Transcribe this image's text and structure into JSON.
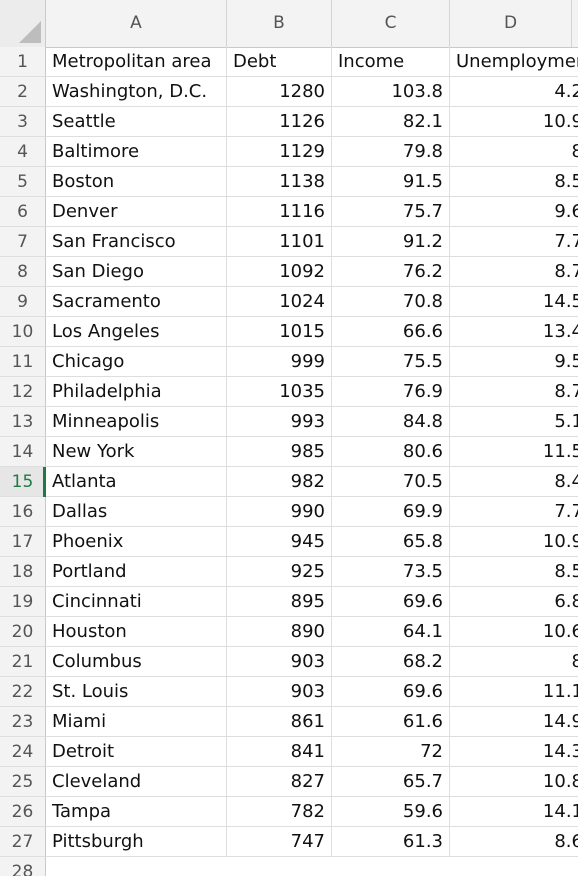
{
  "columns": [
    "A",
    "B",
    "C",
    "D"
  ],
  "active_row": 15,
  "header": {
    "row_number": 1,
    "cells": [
      "Metropolitan area",
      "Debt",
      "Income",
      "Unemployment"
    ]
  },
  "rows": [
    {
      "n": 2,
      "area": "Washington, D.C.",
      "debt": "1280",
      "income": "103.8",
      "unemp": "4.2"
    },
    {
      "n": 3,
      "area": "Seattle",
      "debt": "1126",
      "income": "82.1",
      "unemp": "10.9"
    },
    {
      "n": 4,
      "area": "Baltimore",
      "debt": "1129",
      "income": "79.8",
      "unemp": "8"
    },
    {
      "n": 5,
      "area": "Boston",
      "debt": "1138",
      "income": "91.5",
      "unemp": "8.5"
    },
    {
      "n": 6,
      "area": "Denver",
      "debt": "1116",
      "income": "75.7",
      "unemp": "9.6"
    },
    {
      "n": 7,
      "area": "San Francisco",
      "debt": "1101",
      "income": "91.2",
      "unemp": "7.7"
    },
    {
      "n": 8,
      "area": "San Diego",
      "debt": "1092",
      "income": "76.2",
      "unemp": "8.7"
    },
    {
      "n": 9,
      "area": "Sacramento",
      "debt": "1024",
      "income": "70.8",
      "unemp": "14.5"
    },
    {
      "n": 10,
      "area": "Los Angeles",
      "debt": "1015",
      "income": "66.6",
      "unemp": "13.4"
    },
    {
      "n": 11,
      "area": "Chicago",
      "debt": "999",
      "income": "75.5",
      "unemp": "9.5"
    },
    {
      "n": 12,
      "area": "Philadelphia",
      "debt": "1035",
      "income": "76.9",
      "unemp": "8.7"
    },
    {
      "n": 13,
      "area": "Minneapolis",
      "debt": "993",
      "income": "84.8",
      "unemp": "5.1"
    },
    {
      "n": 14,
      "area": "New York",
      "debt": "985",
      "income": "80.6",
      "unemp": "11.5"
    },
    {
      "n": 15,
      "area": "Atlanta",
      "debt": "982",
      "income": "70.5",
      "unemp": "8.4"
    },
    {
      "n": 16,
      "area": "Dallas",
      "debt": "990",
      "income": "69.9",
      "unemp": "7.7"
    },
    {
      "n": 17,
      "area": "Phoenix",
      "debt": "945",
      "income": "65.8",
      "unemp": "10.9"
    },
    {
      "n": 18,
      "area": "Portland",
      "debt": "925",
      "income": "73.5",
      "unemp": "8.5"
    },
    {
      "n": 19,
      "area": "Cincinnati",
      "debt": "895",
      "income": "69.6",
      "unemp": "6.8"
    },
    {
      "n": 20,
      "area": "Houston",
      "debt": "890",
      "income": "64.1",
      "unemp": "10.6"
    },
    {
      "n": 21,
      "area": "Columbus",
      "debt": "903",
      "income": "68.2",
      "unemp": "8"
    },
    {
      "n": 22,
      "area": "St. Louis",
      "debt": "903",
      "income": "69.6",
      "unemp": "11.1"
    },
    {
      "n": 23,
      "area": "Miami",
      "debt": "861",
      "income": "61.6",
      "unemp": "14.9"
    },
    {
      "n": 24,
      "area": "Detroit",
      "debt": "841",
      "income": "72",
      "unemp": "14.3"
    },
    {
      "n": 25,
      "area": "Cleveland",
      "debt": "827",
      "income": "65.7",
      "unemp": "10.8"
    },
    {
      "n": 26,
      "area": "Tampa",
      "debt": "782",
      "income": "59.6",
      "unemp": "14.1"
    },
    {
      "n": 27,
      "area": "Pittsburgh",
      "debt": "747",
      "income": "61.3",
      "unemp": "8.6"
    }
  ],
  "trailing_row_number": 28,
  "colors": {
    "active_row_marker": "#1f7a43",
    "header_bg": "#f3f3f3",
    "grid": "#dedede"
  }
}
